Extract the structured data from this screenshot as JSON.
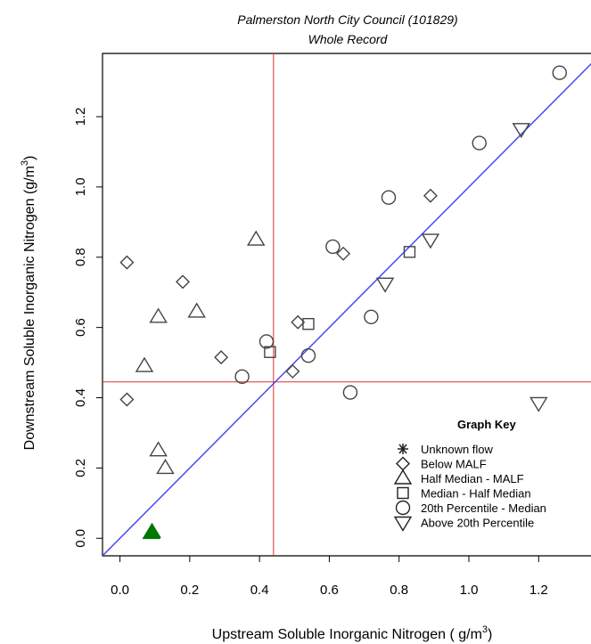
{
  "chart_data": {
    "type": "scatter",
    "title": "Palmerston North City Council  (101829)",
    "subtitle": "Whole Record",
    "xlabel": "Upstream Soluble Inorganic Nitrogen ( g/m",
    "xlabel_sup": "3",
    "xlabel_end": ")",
    "ylabel": "Downstream Soluble Inorganic Nitrogen (g/m",
    "ylabel_sup": "3",
    "ylabel_end": ")",
    "xlim": [
      -0.05,
      1.35
    ],
    "ylim": [
      -0.05,
      1.38
    ],
    "x_ticks": [
      "0.0",
      "0.2",
      "0.4",
      "0.6",
      "0.8",
      "1.0",
      "1.2"
    ],
    "y_ticks": [
      "0.0",
      "0.2",
      "0.4",
      "0.6",
      "0.8",
      "1.0",
      "1.2"
    ],
    "grid": false,
    "reference_lines": {
      "vertical_x": 0.44,
      "horizontal_y": 0.445,
      "color": "#e03030",
      "identity_line": true,
      "identity_color": "#4a4af0"
    },
    "legend": {
      "title": "Graph Key",
      "placement": "bottom-right",
      "entries": [
        {
          "name": "Unknown flow",
          "marker": "asterisk"
        },
        {
          "name": "Below MALF",
          "marker": "diamond"
        },
        {
          "name": "Half Median - MALF",
          "marker": "triangle-up"
        },
        {
          "name": "Median - Half Median",
          "marker": "square"
        },
        {
          "name": "20th Percentile - Median",
          "marker": "circle"
        },
        {
          "name": "Above 20th Percentile",
          "marker": "triangle-down"
        }
      ]
    },
    "series": [
      {
        "name": "Below MALF",
        "marker": "diamond",
        "points": [
          [
            0.02,
            0.785
          ],
          [
            0.02,
            0.395
          ],
          [
            0.18,
            0.73
          ],
          [
            0.29,
            0.515
          ],
          [
            0.51,
            0.615
          ],
          [
            0.64,
            0.81
          ],
          [
            0.89,
            0.975
          ],
          [
            0.495,
            0.475
          ]
        ]
      },
      {
        "name": "Half Median - MALF",
        "marker": "triangle-up",
        "points": [
          [
            0.39,
            0.85
          ],
          [
            0.11,
            0.63
          ],
          [
            0.22,
            0.645
          ],
          [
            0.07,
            0.49
          ],
          [
            0.11,
            0.25
          ],
          [
            0.13,
            0.2
          ]
        ]
      },
      {
        "name": "Median - Half Median",
        "marker": "square",
        "points": [
          [
            0.43,
            0.53
          ],
          [
            0.54,
            0.61
          ],
          [
            0.83,
            0.815
          ]
        ]
      },
      {
        "name": "20th Percentile - Median",
        "marker": "circle",
        "points": [
          [
            1.26,
            1.325
          ],
          [
            1.03,
            1.125
          ],
          [
            0.77,
            0.97
          ],
          [
            0.61,
            0.83
          ],
          [
            0.42,
            0.56
          ],
          [
            0.54,
            0.52
          ],
          [
            0.35,
            0.46
          ],
          [
            0.66,
            0.415
          ],
          [
            0.72,
            0.63
          ]
        ]
      },
      {
        "name": "Above 20th Percentile",
        "marker": "triangle-down",
        "points": [
          [
            1.15,
            1.165
          ],
          [
            0.89,
            0.85
          ],
          [
            0.76,
            0.725
          ],
          [
            1.2,
            0.385
          ]
        ]
      }
    ],
    "highlight_points": [
      {
        "marker": "triangle-up",
        "color": "#007700",
        "points": [
          [
            0.09,
            0.015
          ],
          [
            0.092,
            0.018
          ]
        ]
      }
    ]
  }
}
